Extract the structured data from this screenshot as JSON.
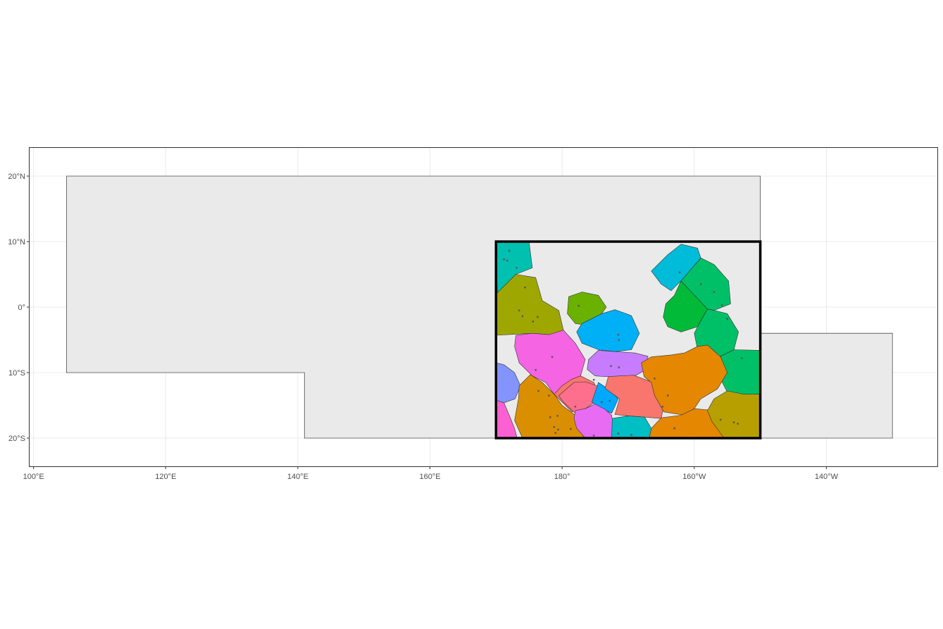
{
  "map": {
    "x_ticks": [
      {
        "lon": 100,
        "label": "100°E"
      },
      {
        "lon": 120,
        "label": "120°E"
      },
      {
        "lon": 140,
        "label": "140°E"
      },
      {
        "lon": 160,
        "label": "160°E"
      },
      {
        "lon": 180,
        "label": "180°"
      },
      {
        "lon": 200,
        "label": "160°W"
      },
      {
        "lon": 220,
        "label": "140°W"
      }
    ],
    "y_ticks": [
      {
        "lat": 20,
        "label": "20°N"
      },
      {
        "lat": 10,
        "label": "10°N"
      },
      {
        "lat": 0,
        "label": "0°"
      },
      {
        "lat": -10,
        "label": "10°S"
      },
      {
        "lat": -20,
        "label": "20°S"
      }
    ],
    "xlim": [
      99.4,
      236.8
    ],
    "ylim": [
      -24.3,
      24.3
    ],
    "colors": {
      "region_fill": "#e8e8e8",
      "region_stroke": "#4d4d4d",
      "highlight_box": "#000000",
      "panel_border": "#333333",
      "grid": "#e5e5e5"
    },
    "study_region": [
      [
        105,
        20
      ],
      [
        210,
        20
      ],
      [
        210,
        -4
      ],
      [
        230,
        -4
      ],
      [
        230,
        -20
      ],
      [
        141,
        -20
      ],
      [
        141,
        -10
      ],
      [
        105,
        -10
      ]
    ],
    "highlight_box": {
      "lon_min": 170,
      "lon_max": 210,
      "lat_min": -20,
      "lat_max": 10
    },
    "zones": [
      {
        "color": "#00c0b0",
        "poly": [
          [
            170,
            10
          ],
          [
            175,
            10
          ],
          [
            175.5,
            6
          ],
          [
            173,
            5
          ],
          [
            170.2,
            2
          ]
        ]
      },
      {
        "color": "#9ea700",
        "poly": [
          [
            170,
            2
          ],
          [
            173,
            5
          ],
          [
            176,
            4.5
          ],
          [
            177,
            1
          ],
          [
            179.5,
            -0.5
          ],
          [
            180.2,
            -3.5
          ],
          [
            178,
            -4.2
          ],
          [
            175.5,
            -4
          ],
          [
            170,
            -4.3
          ]
        ]
      },
      {
        "color": "#6bb100",
        "poly": [
          [
            181,
            1.6
          ],
          [
            183,
            2.3
          ],
          [
            185.5,
            1.8
          ],
          [
            186.7,
            0
          ],
          [
            186,
            -1
          ],
          [
            184,
            -2.8
          ],
          [
            182,
            -2.5
          ],
          [
            180.8,
            -1
          ]
        ]
      },
      {
        "color": "#00b0f6",
        "poly": [
          [
            183,
            -2.5
          ],
          [
            186,
            -1
          ],
          [
            188,
            -0.4
          ],
          [
            190.5,
            -1.3
          ],
          [
            191.7,
            -4
          ],
          [
            190.5,
            -6.5
          ],
          [
            188,
            -6.8
          ],
          [
            185.5,
            -6.5
          ],
          [
            183,
            -5.5
          ],
          [
            182.2,
            -3.8
          ]
        ]
      },
      {
        "color": "#00bcd8",
        "poly": [
          [
            196,
            8
          ],
          [
            198,
            9.6
          ],
          [
            200.5,
            9
          ],
          [
            201,
            7.5
          ],
          [
            198,
            4
          ],
          [
            196.5,
            2.5
          ],
          [
            195,
            3.5
          ],
          [
            193.5,
            5.5
          ]
        ]
      },
      {
        "color": "#00c067",
        "poly": [
          [
            201,
            7.5
          ],
          [
            203,
            6.5
          ],
          [
            205.2,
            4
          ],
          [
            205.5,
            0.5
          ],
          [
            203,
            -0.5
          ],
          [
            202,
            -0.3
          ],
          [
            198,
            4
          ]
        ]
      },
      {
        "color": "#00ba38",
        "poly": [
          [
            197,
            1.8
          ],
          [
            198,
            4
          ],
          [
            202,
            -0.3
          ],
          [
            200.5,
            -3
          ],
          [
            198,
            -3.8
          ],
          [
            196,
            -3
          ],
          [
            195.3,
            -1.5
          ],
          [
            195.7,
            0.5
          ]
        ]
      },
      {
        "color": "#00c067",
        "poly": [
          [
            202,
            -0.3
          ],
          [
            203,
            -0.5
          ],
          [
            205,
            -1
          ],
          [
            206.7,
            -3.8
          ],
          [
            206,
            -6.5
          ],
          [
            204,
            -7.5
          ],
          [
            200.5,
            -6.5
          ],
          [
            200,
            -4
          ],
          [
            200.5,
            -3
          ]
        ]
      },
      {
        "color": "#00c067",
        "poly": [
          [
            206,
            -6.5
          ],
          [
            210,
            -6.6
          ],
          [
            210,
            -13.5
          ],
          [
            208,
            -14
          ],
          [
            205,
            -13
          ],
          [
            204,
            -11
          ],
          [
            204,
            -7.5
          ]
        ]
      },
      {
        "color": "#f564e3",
        "poly": [
          [
            173,
            -4.3
          ],
          [
            175.5,
            -4
          ],
          [
            178,
            -4.2
          ],
          [
            180.2,
            -3.5
          ],
          [
            182,
            -5.5
          ],
          [
            183.5,
            -8
          ],
          [
            182.8,
            -10.5
          ],
          [
            181.5,
            -12
          ],
          [
            180,
            -13
          ],
          [
            178.8,
            -13.3
          ],
          [
            177.5,
            -11.5
          ],
          [
            175.5,
            -10.5
          ],
          [
            173.5,
            -8.5
          ],
          [
            172.8,
            -6
          ]
        ]
      },
      {
        "color": "#c77cff",
        "poly": [
          [
            184,
            -8
          ],
          [
            185.5,
            -6.6
          ],
          [
            188,
            -6.8
          ],
          [
            191,
            -7
          ],
          [
            193,
            -7.5
          ],
          [
            192.8,
            -9.5
          ],
          [
            191,
            -10.5
          ],
          [
            188,
            -10.7
          ],
          [
            185,
            -10.5
          ],
          [
            183.8,
            -9.5
          ]
        ]
      },
      {
        "color": "#8494ff",
        "poly": [
          [
            170,
            -8.5
          ],
          [
            171.2,
            -8.8
          ],
          [
            172.8,
            -10
          ],
          [
            173.7,
            -12
          ],
          [
            172.9,
            -14
          ],
          [
            171.2,
            -14.6
          ],
          [
            170,
            -14.2
          ]
        ]
      },
      {
        "color": "#da8f00",
        "poly": [
          [
            173.5,
            -12
          ],
          [
            175.2,
            -10.3
          ],
          [
            177,
            -11.5
          ],
          [
            178.8,
            -13.3
          ],
          [
            180,
            -15
          ],
          [
            182,
            -16.5
          ],
          [
            183.5,
            -18.5
          ],
          [
            183.2,
            -20
          ],
          [
            174,
            -20
          ],
          [
            172.8,
            -17.3
          ],
          [
            173.4,
            -14
          ]
        ]
      },
      {
        "color": "#fd61d1",
        "poly": [
          [
            170,
            -14.2
          ],
          [
            171.2,
            -14.6
          ],
          [
            172,
            -16.5
          ],
          [
            172.8,
            -18.5
          ],
          [
            173.2,
            -20
          ],
          [
            170,
            -20
          ]
        ]
      },
      {
        "color": "#f8766d",
        "poly": [
          [
            178.8,
            -13.3
          ],
          [
            180,
            -12
          ],
          [
            181.5,
            -11
          ],
          [
            182.8,
            -10.5
          ],
          [
            184.8,
            -11.5
          ],
          [
            185.5,
            -13
          ],
          [
            184.8,
            -14.5
          ],
          [
            184,
            -15
          ],
          [
            182.4,
            -15.6
          ],
          [
            181.5,
            -16
          ]
        ]
      },
      {
        "color": "#fd6f8c",
        "poly": [
          [
            179.5,
            -13.5
          ],
          [
            181.8,
            -11.5
          ],
          [
            183.5,
            -11.4
          ],
          [
            185.8,
            -12.2
          ],
          [
            185,
            -14.5
          ],
          [
            183.5,
            -15.5
          ],
          [
            182,
            -16.2
          ],
          [
            180.2,
            -14.5
          ]
        ]
      },
      {
        "color": "#00a9ff",
        "poly": [
          [
            185.5,
            -11.5
          ],
          [
            187,
            -12.5
          ],
          [
            188.5,
            -14
          ],
          [
            187.5,
            -16.2
          ],
          [
            186,
            -15.5
          ],
          [
            184.5,
            -14.5
          ]
        ]
      },
      {
        "color": "#e76bf3",
        "poly": [
          [
            182,
            -15.8
          ],
          [
            183.5,
            -15.5
          ],
          [
            185,
            -14.8
          ],
          [
            186.5,
            -15.6
          ],
          [
            187.5,
            -16.5
          ],
          [
            187.8,
            -18.5
          ],
          [
            187.6,
            -20
          ],
          [
            183.5,
            -20
          ],
          [
            182.2,
            -18.5
          ],
          [
            181.8,
            -17
          ]
        ]
      },
      {
        "color": "#f8766d",
        "poly": [
          [
            187,
            -10.6
          ],
          [
            190.8,
            -10.4
          ],
          [
            193.8,
            -11.5
          ],
          [
            194,
            -13.5
          ],
          [
            195.3,
            -15.5
          ],
          [
            195,
            -17
          ],
          [
            192.5,
            -16.8
          ],
          [
            190,
            -16.6
          ],
          [
            188,
            -16.4
          ],
          [
            188.7,
            -14
          ],
          [
            186.5,
            -12.4
          ]
        ]
      },
      {
        "color": "#00bfc4",
        "poly": [
          [
            187.6,
            -17
          ],
          [
            190,
            -16.6
          ],
          [
            192.5,
            -16.8
          ],
          [
            193.5,
            -18.5
          ],
          [
            193.2,
            -20
          ],
          [
            187.5,
            -20
          ]
        ]
      },
      {
        "color": "#e58700",
        "poly": [
          [
            192,
            -8.5
          ],
          [
            193.5,
            -7.6
          ],
          [
            196.5,
            -7.3
          ],
          [
            198.5,
            -7
          ],
          [
            200.5,
            -6
          ],
          [
            202,
            -5.8
          ],
          [
            204,
            -7.6
          ],
          [
            205,
            -10
          ],
          [
            203.5,
            -12.5
          ],
          [
            201,
            -14
          ],
          [
            200,
            -15.5
          ],
          [
            198.5,
            -16.5
          ],
          [
            195.4,
            -16
          ],
          [
            194,
            -13.5
          ],
          [
            193.5,
            -11.5
          ],
          [
            192.4,
            -10.6
          ]
        ]
      },
      {
        "color": "#e58700",
        "poly": [
          [
            193.5,
            -18.5
          ],
          [
            195,
            -16.9
          ],
          [
            198,
            -16.5
          ],
          [
            200,
            -15.5
          ],
          [
            202.2,
            -15.7
          ],
          [
            204.5,
            -20
          ],
          [
            193.2,
            -20
          ]
        ]
      },
      {
        "color": "#b79f00",
        "poly": [
          [
            202,
            -15.8
          ],
          [
            203,
            -14
          ],
          [
            205,
            -12.8
          ],
          [
            207.5,
            -13.3
          ],
          [
            210,
            -13.3
          ],
          [
            210,
            -20
          ],
          [
            204.5,
            -20
          ],
          [
            202.7,
            -17.5
          ]
        ]
      }
    ],
    "atolls": [
      [
        172,
        8.6
      ],
      [
        171.7,
        7.1
      ],
      [
        171.2,
        7.3
      ],
      [
        173.1,
        6
      ],
      [
        174.4,
        3
      ],
      [
        173.5,
        -0.5
      ],
      [
        174,
        -1.4
      ],
      [
        175.6,
        -2.2
      ],
      [
        176.3,
        -1.5
      ],
      [
        182.5,
        0.2
      ],
      [
        188.5,
        -4.2
      ],
      [
        188.6,
        -5
      ],
      [
        187.4,
        -9
      ],
      [
        188.6,
        -9.2
      ],
      [
        178.5,
        -7.6
      ],
      [
        176,
        -9.6
      ],
      [
        176.4,
        -12.8
      ],
      [
        178,
        -13.5
      ],
      [
        184.8,
        -11.1
      ],
      [
        182,
        -15.2
      ],
      [
        186,
        -14.5
      ],
      [
        187.2,
        -14.3
      ],
      [
        188.5,
        -19.3
      ],
      [
        184.8,
        -19.6
      ],
      [
        190.5,
        -19.5
      ],
      [
        195.2,
        -15.2
      ],
      [
        197,
        -18.5
      ],
      [
        198.2,
        -20
      ],
      [
        204,
        -17.2
      ],
      [
        206,
        -17.6
      ],
      [
        206.6,
        -17.8
      ],
      [
        201,
        3.5
      ],
      [
        203,
        2.3
      ],
      [
        204.2,
        0.3
      ],
      [
        205,
        -1.8
      ],
      [
        207.2,
        -7.8
      ],
      [
        197.8,
        5.3
      ],
      [
        194,
        -10.9
      ],
      [
        196,
        -13.5
      ],
      [
        178.2,
        -16.8
      ],
      [
        179.3,
        -16.6
      ],
      [
        178.8,
        -18.3
      ],
      [
        179.4,
        -18.7
      ],
      [
        179,
        -19.2
      ],
      [
        181.3,
        -18.6
      ]
    ]
  }
}
